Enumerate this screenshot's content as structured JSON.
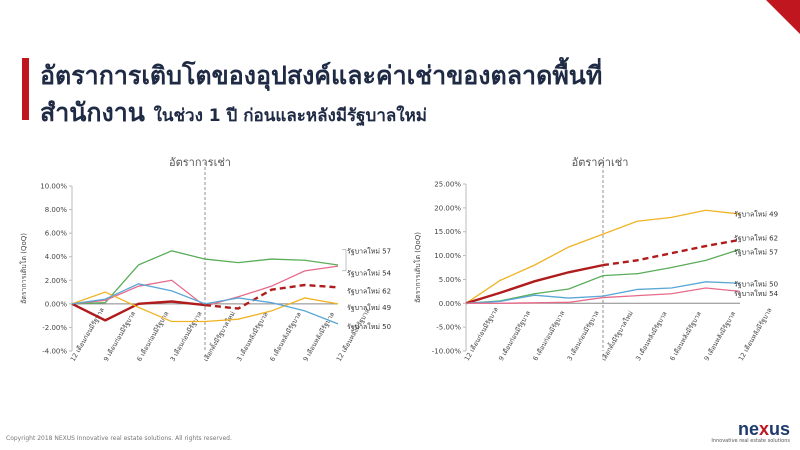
{
  "header": {
    "title_line1": "อัตราการเติบโตของอุปสงค์และค่าเช่าของตลาดพื้นที่",
    "title_line2": "สำนักงาน",
    "title_line2_sub": "ในช่วง 1 ปี ก่อนและหลังมีรัฐบาลใหม่"
  },
  "footer": {
    "copyright": "Copyright 2018 NEXUS Innovative real estate solutions. All rights reserved.",
    "logo_main": "ne",
    "logo_x": "x",
    "logo_end": "us",
    "tagline": "Innovative real estate solutions"
  },
  "colors": {
    "accent": "#c0161f",
    "title": "#1f2a44",
    "rg57": "#5aad5a",
    "rg54": "#e86a8a",
    "rg62": "#b01c1c",
    "rg49": "#f0b323",
    "rg50": "#5aa7d6"
  },
  "chart_data": [
    {
      "type": "line",
      "title": "อัตราการเช่า",
      "ylabel": "อัตราการเติบโต (QoQ)",
      "ylim": [
        -4,
        10
      ],
      "yticks": [
        "10.00%",
        "8.00%",
        "6.00%",
        "4.00%",
        "2.00%",
        "0.00%",
        "-2.00%",
        "-4.00%"
      ],
      "ytick_values": [
        10,
        8,
        6,
        4,
        2,
        0,
        -2,
        -4
      ],
      "categories": [
        "12 เดือนก่อนมีรัฐบาล",
        "9 เดือนก่อนมีรัฐบาล",
        "6 เดือนก่อนมีรัฐบาล",
        "3 เดือนก่อนมีรัฐบาล",
        "เลือกตั้งมีรัฐบาลใหม่",
        "3 เดือนหลังมีรัฐบาล",
        "6 เดือนหลังมีรัฐบาล",
        "9 เดือนหลังมีรัฐบาล",
        "12 เดือนหลังมีรัฐบาล"
      ],
      "divider_index": 4,
      "series": [
        {
          "name": "รัฐบาลใหม่ 57",
          "color": "#5aad5a",
          "dashed": false,
          "values": [
            0,
            0.1,
            3.3,
            4.5,
            3.8,
            3.5,
            3.8,
            3.7,
            3.3
          ]
        },
        {
          "name": "รัฐบาลใหม่ 54",
          "color": "#e86a8a",
          "dashed": false,
          "values": [
            0,
            0.3,
            1.5,
            2.0,
            -0.2,
            0.6,
            1.5,
            2.8,
            3.2
          ]
        },
        {
          "name": "รัฐบาลใหม่ 62",
          "color": "#b01c1c",
          "dashed_from": 4,
          "values": [
            0,
            -1.4,
            0.0,
            0.2,
            -0.1,
            -0.4,
            1.2,
            1.6,
            1.4
          ]
        },
        {
          "name": "รัฐบาลใหม่ 49",
          "color": "#f0b323",
          "dashed": false,
          "values": [
            0,
            1.0,
            -0.3,
            -1.5,
            -1.5,
            -1.3,
            -0.6,
            0.5,
            0.0
          ]
        },
        {
          "name": "รัฐบาลใหม่ 50",
          "color": "#5aa7d6",
          "dashed": false,
          "values": [
            0,
            0.4,
            1.7,
            1.1,
            0.0,
            0.5,
            0.1,
            -0.6,
            -1.7
          ]
        }
      ],
      "legend_labels": [
        {
          "name": "รัฐบาลใหม่ 57",
          "y": 4.5
        },
        {
          "name": "รัฐบาลใหม่ 54",
          "y": 2.6
        },
        {
          "name": "รัฐบาลใหม่ 62",
          "y": 1.1
        },
        {
          "name": "รัฐบาลใหม่ 49",
          "y": -0.3
        },
        {
          "name": "รัฐบาลใหม่ 50",
          "y": -1.9
        }
      ]
    },
    {
      "type": "line",
      "title": "อัตราค่าเช่า",
      "ylabel": "อัตราการเติบโต (QoQ)",
      "ylim": [
        -10,
        25
      ],
      "yticks": [
        "25.00%",
        "20.00%",
        "15.00%",
        "10.00%",
        "5.00%",
        "0.00%",
        "-5.00%",
        "-10.00%"
      ],
      "ytick_values": [
        25,
        20,
        15,
        10,
        5,
        0,
        -5,
        -10
      ],
      "categories": [
        "12 เดือนก่อนมีรัฐบาล",
        "9 เดือนก่อนมีรัฐบาล",
        "6 เดือนก่อนมีรัฐบาล",
        "3 เดือนก่อนมีรัฐบาล",
        "เลือกตั้งมีรัฐบาลใหม่",
        "3 เดือนหลังมีรัฐบาล",
        "6 เดือนหลังมีรัฐบาล",
        "9 เดือนหลังมีรัฐบาล",
        "12 เดือนหลังมีรัฐบาล"
      ],
      "divider_index": 4,
      "series": [
        {
          "name": "รัฐบาลใหม่ 49",
          "color": "#f0b323",
          "dashed": false,
          "values": [
            0,
            4.8,
            8.0,
            11.8,
            14.5,
            17.2,
            18.0,
            19.5,
            18.7
          ]
        },
        {
          "name": "รัฐบาลใหม่ 62",
          "color": "#b01c1c",
          "dashed_from": 4,
          "values": [
            0,
            2.2,
            4.6,
            6.5,
            8.0,
            9.0,
            10.5,
            12.0,
            13.3
          ]
        },
        {
          "name": "รัฐบาลใหม่ 57",
          "color": "#5aad5a",
          "dashed": false,
          "values": [
            0,
            0.5,
            2.0,
            3.0,
            5.8,
            6.2,
            7.5,
            9.0,
            11.3
          ]
        },
        {
          "name": "รัฐบาลใหม่ 50",
          "color": "#5aa7d6",
          "dashed": false,
          "values": [
            0,
            0.4,
            1.7,
            1.1,
            1.5,
            2.9,
            3.2,
            4.5,
            4.2
          ]
        },
        {
          "name": "รัฐบาลใหม่ 54",
          "color": "#e86a8a",
          "dashed": false,
          "values": [
            0,
            0.0,
            0.1,
            0.2,
            1.2,
            1.6,
            2.0,
            3.2,
            2.5
          ]
        }
      ],
      "legend_labels": [
        {
          "name": "รัฐบาลใหม่ 49",
          "y": 18.7
        },
        {
          "name": "รัฐบาลใหม่ 62",
          "y": 13.7
        },
        {
          "name": "รัฐบาลใหม่ 57",
          "y": 10.8
        },
        {
          "name": "รัฐบาลใหม่ 50",
          "y": 4.0
        },
        {
          "name": "รัฐบาลใหม่ 54",
          "y": 2.0
        }
      ]
    }
  ]
}
